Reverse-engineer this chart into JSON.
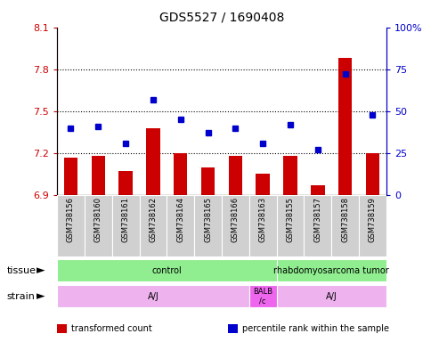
{
  "title": "GDS5527 / 1690408",
  "samples": [
    "GSM738156",
    "GSM738160",
    "GSM738161",
    "GSM738162",
    "GSM738164",
    "GSM738165",
    "GSM738166",
    "GSM738163",
    "GSM738155",
    "GSM738157",
    "GSM738158",
    "GSM738159"
  ],
  "red_values": [
    7.17,
    7.18,
    7.07,
    7.38,
    7.2,
    7.1,
    7.18,
    7.05,
    7.18,
    6.97,
    7.88,
    7.2
  ],
  "blue_values": [
    40,
    41,
    31,
    57,
    45,
    37,
    40,
    31,
    42,
    27,
    72,
    48
  ],
  "ylim_left": [
    6.9,
    8.1
  ],
  "ylim_right": [
    0,
    100
  ],
  "yticks_left": [
    6.9,
    7.2,
    7.5,
    7.8,
    8.1
  ],
  "yticks_right": [
    0,
    25,
    50,
    75,
    100
  ],
  "ytick_labels_left": [
    "6.9",
    "7.2",
    "7.5",
    "7.8",
    "8.1"
  ],
  "ytick_labels_right": [
    "0",
    "25",
    "50",
    "75",
    "100%"
  ],
  "hlines": [
    7.2,
    7.5,
    7.8
  ],
  "bar_color": "#CC0000",
  "dot_color": "#0000CC",
  "label_color_left": "#CC0000",
  "label_color_right": "#0000CC",
  "tissue_bounds": [
    [
      0,
      8,
      "control",
      "#90EE90"
    ],
    [
      8,
      12,
      "rhabdomyosarcoma tumor",
      "#90EE90"
    ]
  ],
  "strain_bounds": [
    [
      0,
      7,
      "A/J",
      "#EEB3EE"
    ],
    [
      7,
      8,
      "BALB\n/c",
      "#EE66EE"
    ],
    [
      8,
      12,
      "A/J",
      "#EEB3EE"
    ]
  ],
  "legend_items": [
    {
      "color": "#CC0000",
      "label": "transformed count"
    },
    {
      "color": "#0000CC",
      "label": "percentile rank within the sample"
    }
  ],
  "sample_box_color": "#D0D0D0",
  "bg_color": "#FFFFFF"
}
